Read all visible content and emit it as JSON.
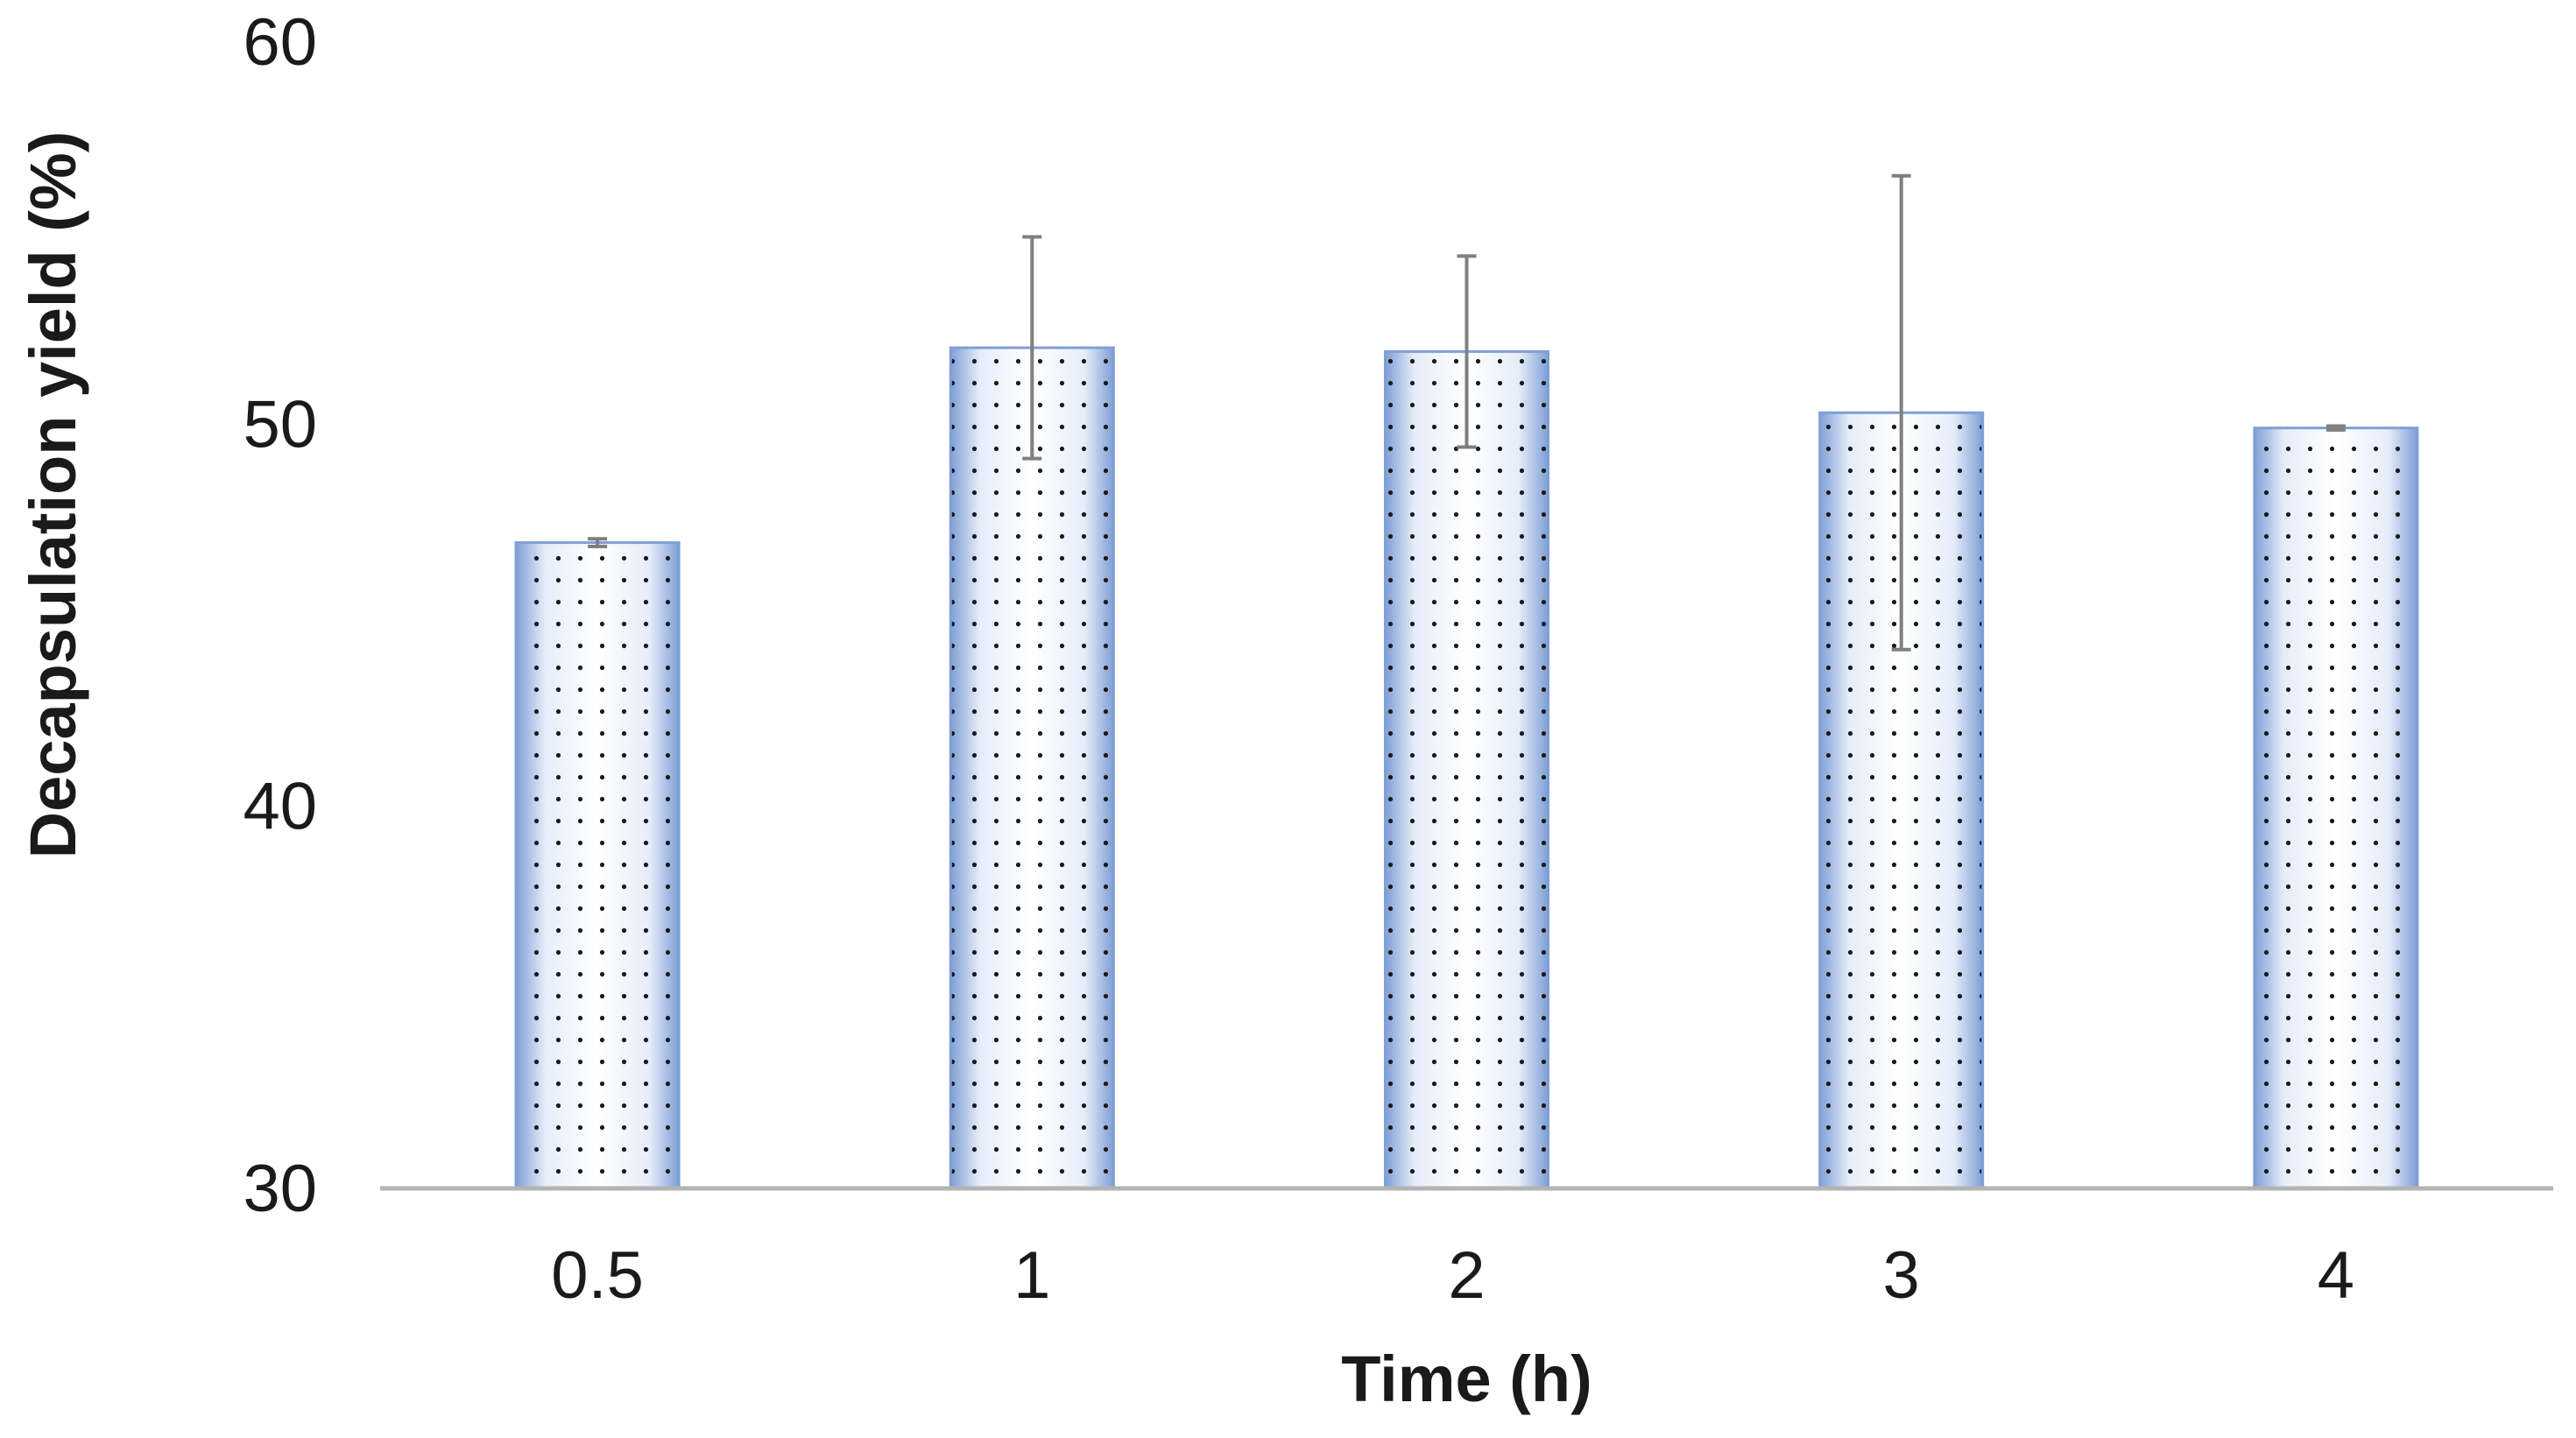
{
  "chart_data": {
    "type": "bar",
    "title": "",
    "xlabel": "Time (h)",
    "ylabel": "Decapsulation yield (%)",
    "categories": [
      "0.5",
      "1",
      "2",
      "3",
      "4"
    ],
    "values": [
      46.9,
      52.0,
      51.9,
      50.3,
      49.9
    ],
    "error": [
      0.1,
      2.9,
      2.5,
      6.2,
      0.05
    ],
    "ylim": [
      30,
      60
    ],
    "yticks": [
      "30",
      "40",
      "50",
      "60"
    ],
    "ytick_values": [
      30,
      40,
      50,
      60
    ],
    "grid": false,
    "legend": "none",
    "colors": {
      "bar_edge": "#7f9fd6",
      "bar_fill": "#f4f7fd",
      "dot": "#1a1a1a",
      "error_bar": "#7f7f7f",
      "axis": "#b3b3b3"
    }
  }
}
